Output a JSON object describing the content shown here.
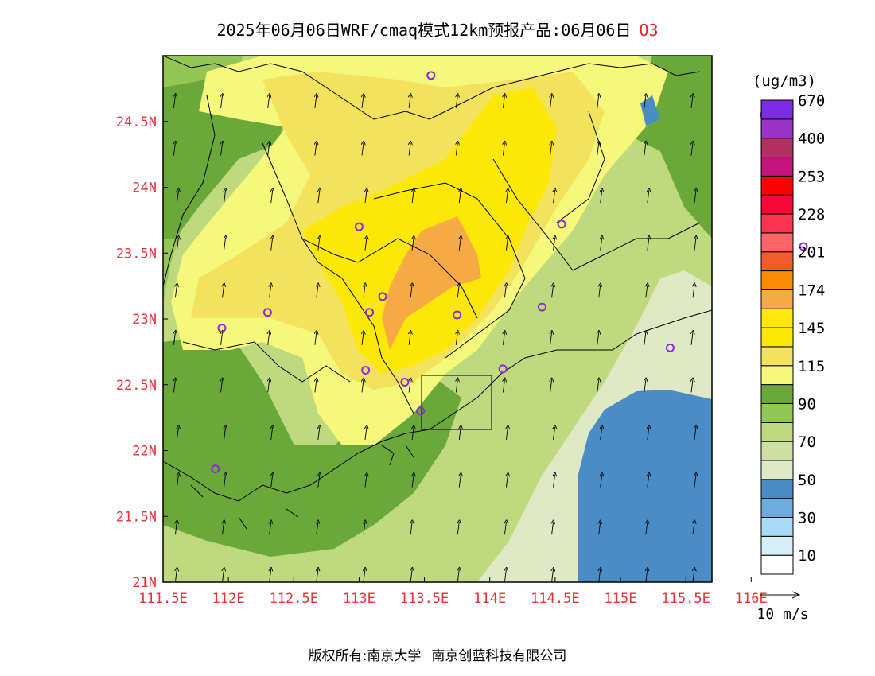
{
  "title": {
    "text": "2025年06月06日WRF/cmaq模式12km预报产品:06月06日",
    "pollutant": "O3"
  },
  "axes": {
    "x_ticks": [
      "111.5E",
      "112E",
      "112.5E",
      "113E",
      "113.5E",
      "114E",
      "114.5E",
      "115E",
      "115.5E",
      "116E"
    ],
    "y_ticks": [
      "21N",
      "21.5N",
      "22N",
      "22.5N",
      "23N",
      "23.5N",
      "24N",
      "24.5N"
    ],
    "lon_range": [
      111.5,
      115.7
    ],
    "lat_range": [
      21.0,
      25.0
    ]
  },
  "colorbar": {
    "unit": "(ug/m3)",
    "bins": [
      {
        "color": "#ffffff"
      },
      {
        "color": "#d6eef8"
      },
      {
        "color": "#a6dcf5"
      },
      {
        "color": "#6aaedd"
      },
      {
        "color": "#4a8cc6"
      },
      {
        "color": "#dfe9c5"
      },
      {
        "color": "#cfdfa2"
      },
      {
        "color": "#bfd97e"
      },
      {
        "color": "#93c654"
      },
      {
        "color": "#6aa83a"
      },
      {
        "color": "#f5f87a"
      },
      {
        "color": "#f2e25c"
      },
      {
        "color": "#fde707"
      },
      {
        "color": "#ffe70a"
      },
      {
        "color": "#f5aa45"
      },
      {
        "color": "#fc8a02"
      },
      {
        "color": "#f05c2c"
      },
      {
        "color": "#fb6565"
      },
      {
        "color": "#fb3350"
      },
      {
        "color": "#f90638"
      },
      {
        "color": "#ff0000"
      },
      {
        "color": "#c4137c"
      },
      {
        "color": "#b33062"
      },
      {
        "color": "#9a34c9"
      },
      {
        "color": "#7b2ce2"
      }
    ],
    "labels": [
      "10",
      "30",
      "50",
      "70",
      "90",
      "115",
      "145",
      "174",
      "201",
      "228",
      "253",
      "400",
      "670"
    ]
  },
  "wind": {
    "legend_label": "10 m/s",
    "direction": "northward"
  },
  "stations": [
    {
      "lon": 113.55,
      "lat": 24.85
    },
    {
      "lon": 116.1,
      "lat": 24.55
    },
    {
      "lon": 116.4,
      "lat": 23.55
    },
    {
      "lon": 113.0,
      "lat": 23.7
    },
    {
      "lon": 114.55,
      "lat": 23.72
    },
    {
      "lon": 112.3,
      "lat": 23.05
    },
    {
      "lon": 111.95,
      "lat": 22.93
    },
    {
      "lon": 113.08,
      "lat": 23.05
    },
    {
      "lon": 113.18,
      "lat": 23.17
    },
    {
      "lon": 113.75,
      "lat": 23.03
    },
    {
      "lon": 114.4,
      "lat": 23.09
    },
    {
      "lon": 115.38,
      "lat": 22.78
    },
    {
      "lon": 113.05,
      "lat": 22.61
    },
    {
      "lon": 113.35,
      "lat": 22.52
    },
    {
      "lon": 114.1,
      "lat": 22.62
    },
    {
      "lon": 113.47,
      "lat": 22.3
    },
    {
      "lon": 111.9,
      "lat": 21.86
    }
  ],
  "footer": {
    "copyright": "版权所有:南京大学",
    "company": "南京创蓝科技有限公司"
  },
  "palette": {
    "tick_label": "#e8333a",
    "station": "#8a2be2",
    "boundary": "#000000"
  }
}
